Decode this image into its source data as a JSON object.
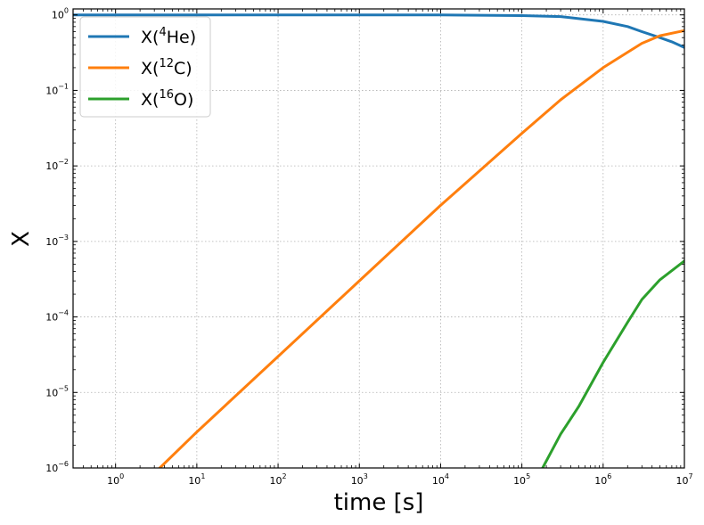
{
  "chart_data": {
    "type": "line",
    "xlabel": "time [s]",
    "ylabel": "X",
    "x_scale": "log",
    "y_scale": "log",
    "xlim": [
      0.3,
      10000000
    ],
    "ylim": [
      1e-06,
      1.2
    ],
    "grid": true,
    "legend_position": "top-left",
    "x_ticks": [
      {
        "value": 1,
        "base": "10",
        "exp": "0"
      },
      {
        "value": 10,
        "base": "10",
        "exp": "1"
      },
      {
        "value": 100,
        "base": "10",
        "exp": "2"
      },
      {
        "value": 1000,
        "base": "10",
        "exp": "3"
      },
      {
        "value": 10000,
        "base": "10",
        "exp": "4"
      },
      {
        "value": 100000,
        "base": "10",
        "exp": "5"
      },
      {
        "value": 1000000,
        "base": "10",
        "exp": "6"
      },
      {
        "value": 10000000,
        "base": "10",
        "exp": "7"
      }
    ],
    "y_ticks": [
      {
        "value": 1e-06,
        "base": "10",
        "exp": "−6"
      },
      {
        "value": 1e-05,
        "base": "10",
        "exp": "−5"
      },
      {
        "value": 0.0001,
        "base": "10",
        "exp": "−4"
      },
      {
        "value": 0.001,
        "base": "10",
        "exp": "−3"
      },
      {
        "value": 0.01,
        "base": "10",
        "exp": "−2"
      },
      {
        "value": 0.1,
        "base": "10",
        "exp": "−1"
      },
      {
        "value": 1,
        "base": "10",
        "exp": "0"
      }
    ],
    "series": [
      {
        "name": "X(4He)",
        "label_parts": {
          "prefix": "X(",
          "sup": "4",
          "main": "He",
          "suffix": ")"
        },
        "color": "#1f77b4",
        "x": [
          0.3,
          1,
          10,
          100,
          1000,
          10000,
          100000,
          300000,
          1000000,
          2000000,
          3000000,
          5000000,
          7000000,
          10000000
        ],
        "y": [
          1.0,
          1.0,
          1.0,
          1.0,
          1.0,
          1.0,
          0.98,
          0.95,
          0.82,
          0.7,
          0.6,
          0.5,
          0.44,
          0.37
        ]
      },
      {
        "name": "X(12C)",
        "label_parts": {
          "prefix": "X(",
          "sup": "12",
          "main": "C",
          "suffix": ")"
        },
        "color": "#ff7f0e",
        "x": [
          3.5,
          10,
          100,
          1000,
          10000,
          100000,
          300000,
          1000000,
          2000000,
          3000000,
          5000000,
          10000000
        ],
        "y": [
          1e-06,
          3e-06,
          3e-05,
          0.0003,
          0.003,
          0.027,
          0.075,
          0.2,
          0.32,
          0.42,
          0.53,
          0.62
        ]
      },
      {
        "name": "X(16O)",
        "label_parts": {
          "prefix": "X(",
          "sup": "16",
          "main": "O",
          "suffix": ")"
        },
        "color": "#2ca02c",
        "x": [
          180000,
          300000,
          500000,
          1000000,
          2000000,
          3000000,
          5000000,
          10000000
        ],
        "y": [
          1e-06,
          2.8e-06,
          6.5e-06,
          2.5e-05,
          8.5e-05,
          0.00017,
          0.00031,
          0.00055
        ]
      }
    ]
  }
}
